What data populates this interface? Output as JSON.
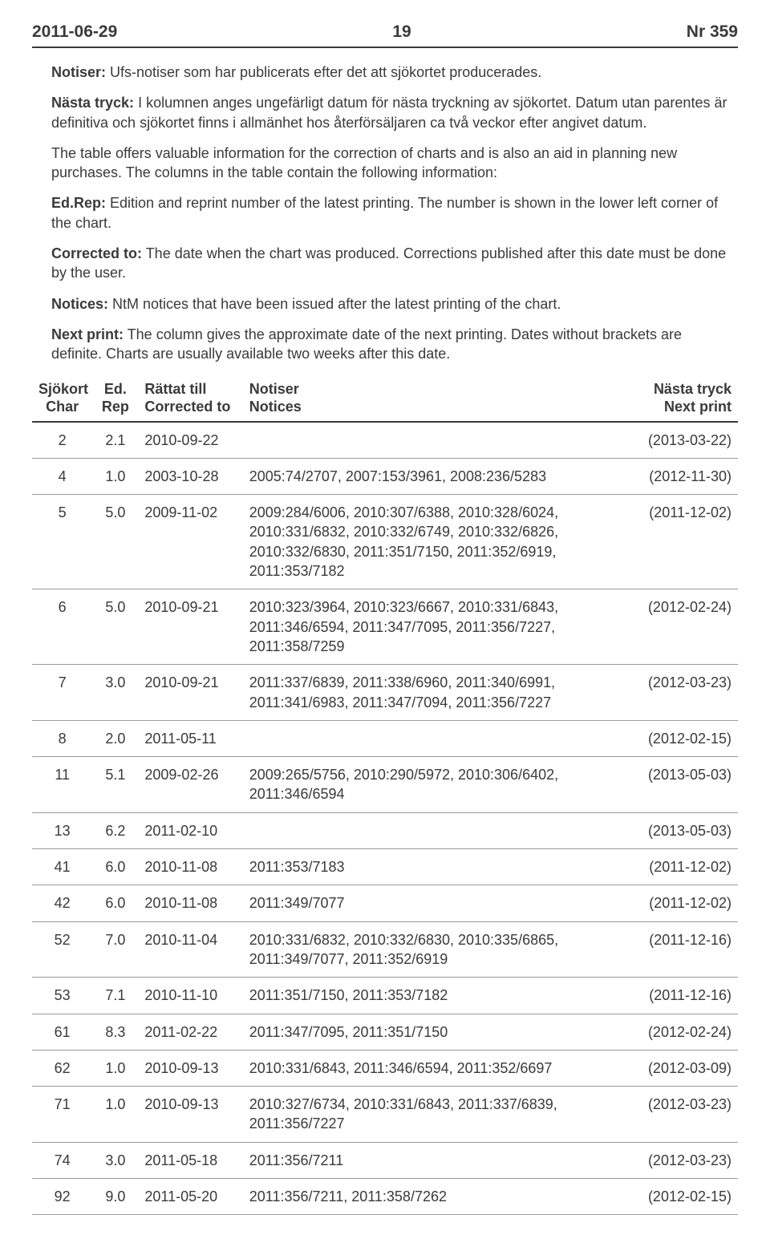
{
  "header": {
    "date": "2011-06-29",
    "page": "19",
    "issue": "Nr  359"
  },
  "intro": {
    "p1": {
      "label": "Notiser:",
      "text": " Ufs-notiser som har publicerats efter det att sjökortet producerades."
    },
    "p2": {
      "label": "Nästa tryck:",
      "text": " I kolumnen anges ungefärligt datum för nästa tryckning av sjökortet. Datum utan parentes är definitiva och sjökortet finns i allmänhet hos återförsäljaren ca två veckor efter angivet datum."
    },
    "p3": {
      "text": "The table offers valuable information for the correction of charts and is also an aid in planning new purchases. The columns in the table contain the following information:"
    },
    "p4": {
      "label": "Ed.Rep:",
      "text": " Edition and reprint number of the latest printing. The number is shown in the lower left corner of the chart."
    },
    "p5": {
      "label": "Corrected to:",
      "text": " The date when the chart was produced. Corrections published after this date must be done by the user."
    },
    "p6": {
      "label": "Notices:",
      "text": " NtM notices that have been issued after the latest printing of the chart."
    },
    "p7": {
      "label": "Next print:",
      "text": " The column gives the approximate date of the next printing. Dates without brackets are definite. Charts are usually available two weeks after this date."
    }
  },
  "table": {
    "headers": {
      "chart1": "Sjökort",
      "chart2": "Char",
      "ed1": "Ed.",
      "ed2": "Rep",
      "corr1": "Rättat till",
      "corr2": "Corrected to",
      "not1": "Notiser",
      "not2": "Notices",
      "next1": "Nästa tryck",
      "next2": "Next print"
    },
    "rows": [
      {
        "chart": "2",
        "ed": "2.1",
        "corr": "2010-09-22",
        "notices": "",
        "next": "(2013-03-22)"
      },
      {
        "chart": "4",
        "ed": "1.0",
        "corr": "2003-10-28",
        "notices": "2005:74/2707, 2007:153/3961, 2008:236/5283",
        "next": "(2012-11-30)"
      },
      {
        "chart": "5",
        "ed": "5.0",
        "corr": "2009-11-02",
        "notices": "2009:284/6006, 2010:307/6388, 2010:328/6024, 2010:331/6832, 2010:332/6749, 2010:332/6826, 2010:332/6830, 2011:351/7150, 2011:352/6919, 2011:353/7182",
        "next": "(2011-12-02)"
      },
      {
        "chart": "6",
        "ed": "5.0",
        "corr": "2010-09-21",
        "notices": "2010:323/3964, 2010:323/6667, 2010:331/6843, 2011:346/6594, 2011:347/7095, 2011:356/7227, 2011:358/7259",
        "next": "(2012-02-24)"
      },
      {
        "chart": "7",
        "ed": "3.0",
        "corr": "2010-09-21",
        "notices": "2011:337/6839, 2011:338/6960, 2011:340/6991, 2011:341/6983, 2011:347/7094, 2011:356/7227",
        "next": "(2012-03-23)"
      },
      {
        "chart": "8",
        "ed": "2.0",
        "corr": "2011-05-11",
        "notices": "",
        "next": "(2012-02-15)"
      },
      {
        "chart": "11",
        "ed": "5.1",
        "corr": "2009-02-26",
        "notices": "2009:265/5756, 2010:290/5972, 2010:306/6402, 2011:346/6594",
        "next": "(2013-05-03)"
      },
      {
        "chart": "13",
        "ed": "6.2",
        "corr": "2011-02-10",
        "notices": "",
        "next": "(2013-05-03)"
      },
      {
        "chart": "41",
        "ed": "6.0",
        "corr": "2010-11-08",
        "notices": "2011:353/7183",
        "next": "(2011-12-02)"
      },
      {
        "chart": "42",
        "ed": "6.0",
        "corr": "2010-11-08",
        "notices": "2011:349/7077",
        "next": "(2011-12-02)"
      },
      {
        "chart": "52",
        "ed": "7.0",
        "corr": "2010-11-04",
        "notices": "2010:331/6832, 2010:332/6830, 2010:335/6865, 2011:349/7077, 2011:352/6919",
        "next": "(2011-12-16)"
      },
      {
        "chart": "53",
        "ed": "7.1",
        "corr": "2010-11-10",
        "notices": "2011:351/7150, 2011:353/7182",
        "next": "(2011-12-16)"
      },
      {
        "chart": "61",
        "ed": "8.3",
        "corr": "2011-02-22",
        "notices": "2011:347/7095, 2011:351/7150",
        "next": "(2012-02-24)"
      },
      {
        "chart": "62",
        "ed": "1.0",
        "corr": "2010-09-13",
        "notices": "2010:331/6843, 2011:346/6594, 2011:352/6697",
        "next": "(2012-03-09)"
      },
      {
        "chart": "71",
        "ed": "1.0",
        "corr": "2010-09-13",
        "notices": "2010:327/6734, 2010:331/6843, 2011:337/6839, 2011:356/7227",
        "next": "(2012-03-23)"
      },
      {
        "chart": "74",
        "ed": "3.0",
        "corr": "2011-05-18",
        "notices": "2011:356/7211",
        "next": "(2012-03-23)"
      },
      {
        "chart": "92",
        "ed": "9.0",
        "corr": "2011-05-20",
        "notices": "2011:356/7211, 2011:358/7262",
        "next": "(2012-02-15)"
      }
    ]
  }
}
